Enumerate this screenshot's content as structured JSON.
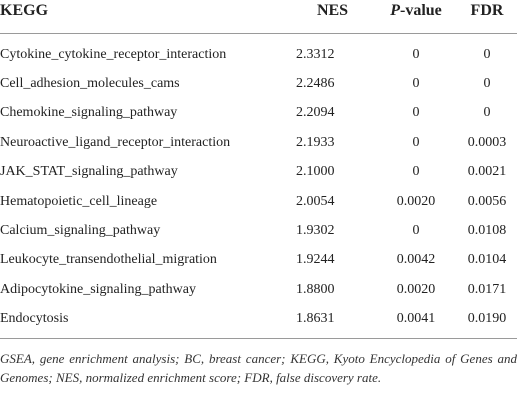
{
  "table": {
    "header": [
      "KEGG",
      "NES",
      {
        "italic": "P",
        "rest": "-value"
      },
      "FDR"
    ],
    "rows": [
      [
        "Cytokine_cytokine_receptor_interaction",
        "2.3312",
        "0",
        "0"
      ],
      [
        "Cell_adhesion_molecules_cams",
        "2.2486",
        "0",
        "0"
      ],
      [
        "Chemokine_signaling_pathway",
        "2.2094",
        "0",
        "0"
      ],
      [
        "Neuroactive_ligand_receptor_interaction",
        "2.1933",
        "0",
        "0.0003"
      ],
      [
        "JAK_STAT_signaling_pathway",
        "2.1000",
        "0",
        "0.0021"
      ],
      [
        "Hematopoietic_cell_lineage",
        "2.0054",
        "0.0020",
        "0.0056"
      ],
      [
        "Calcium_signaling_pathway",
        "1.9302",
        "0",
        "0.0108"
      ],
      [
        "Leukocyte_transendothelial_migration",
        "1.9244",
        "0.0042",
        "0.0104"
      ],
      [
        "Adipocytokine_signaling_pathway",
        "1.8800",
        "0.0020",
        "0.0171"
      ],
      [
        "Endocytosis",
        "1.8631",
        "0.0041",
        "0.0190"
      ]
    ],
    "footnote": "GSEA, gene enrichment analysis; BC, breast cancer; KEGG, Kyoto Encyclopedia of Genes and Genomes; NES, normalized enrichment score; FDR, false discovery rate."
  }
}
